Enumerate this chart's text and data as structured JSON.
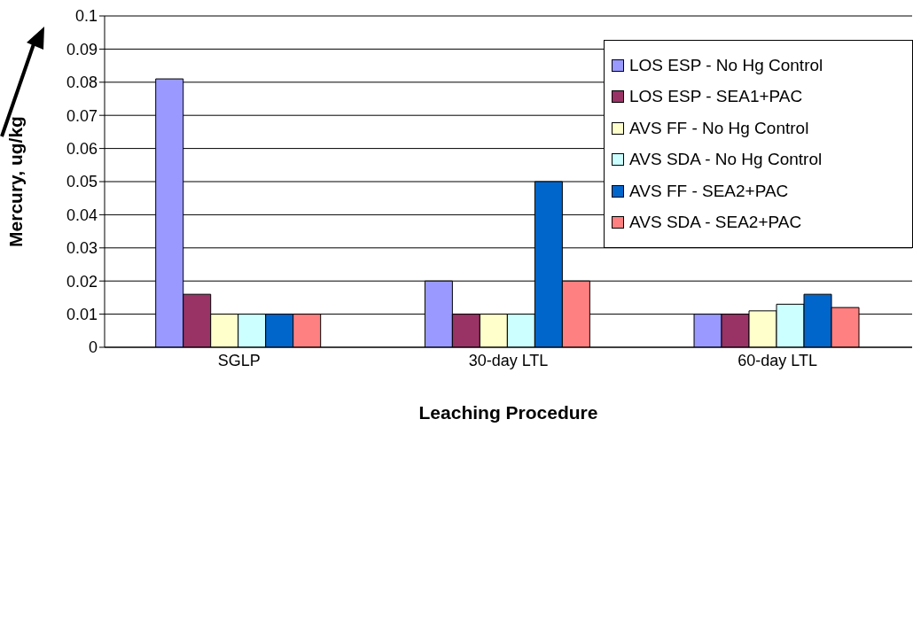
{
  "chart_data": {
    "type": "bar",
    "xlabel": "Leaching Procedure",
    "ylabel": "Mercury, ug/kg",
    "categories": [
      "SGLP",
      "30-day LTL",
      "60-day LTL"
    ],
    "series": [
      {
        "name": "LOS ESP - No Hg Control",
        "color": "#9999ff",
        "values": [
          0.081,
          0.02,
          0.01
        ]
      },
      {
        "name": "LOS ESP - SEA1+PAC",
        "color": "#993366",
        "values": [
          0.016,
          0.01,
          0.01
        ]
      },
      {
        "name": "AVS FF - No Hg Control",
        "color": "#ffffcc",
        "values": [
          0.01,
          0.01,
          0.011
        ]
      },
      {
        "name": "AVS SDA - No Hg Control",
        "color": "#ccffff",
        "values": [
          0.01,
          0.01,
          0.013
        ]
      },
      {
        "name": "AVS FF - SEA2+PAC",
        "color": "#0066cc",
        "values": [
          0.01,
          0.05,
          0.016
        ]
      },
      {
        "name": "AVS SDA - SEA2+PAC",
        "color": "#ff8080",
        "values": [
          0.01,
          0.02,
          0.012
        ]
      }
    ],
    "ylim": [
      0,
      0.1
    ],
    "yticks": [
      0,
      0.01,
      0.02,
      0.03,
      0.04,
      0.05,
      0.06,
      0.07,
      0.08,
      0.09,
      0.1
    ],
    "grid": "y",
    "legend": "top right"
  }
}
